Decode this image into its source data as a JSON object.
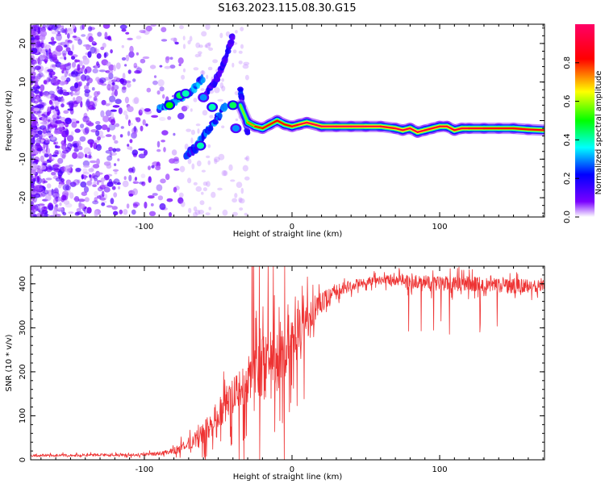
{
  "figure": {
    "title": "S163.2023.115.08.30.G15"
  },
  "chart_data": [
    {
      "type": "heatmap",
      "name": "spectrogram",
      "xlabel": "Height of straight line (km)",
      "ylabel": "Frequency (Hz)",
      "xlim": [
        -177,
        171
      ],
      "ylim": [
        -25,
        25
      ],
      "xticks": [
        -100,
        0,
        100
      ],
      "xtick_labels": [
        "-100",
        "0",
        "100"
      ],
      "yticks": [
        -20,
        -10,
        0,
        10,
        20
      ],
      "ytick_labels": [
        "-20",
        "-10",
        "0",
        "10",
        "20"
      ],
      "grid": false,
      "colorbar": {
        "label": "Normalized spectral amplitude",
        "range": [
          0,
          1
        ],
        "ticks": [
          0,
          0.2,
          0.4,
          0.6,
          0.8
        ],
        "tick_labels": [
          "0.0",
          "0.2",
          "0.4",
          "0.6",
          "0.8"
        ],
        "colormap": [
          "#ffffff",
          "#7a00ff",
          "#0000ff",
          "#00ffff",
          "#00ff00",
          "#ffff00",
          "#ff0000",
          "#ff0066"
        ]
      },
      "ridge": {
        "x": [
          -35,
          -30,
          -25,
          -20,
          -15,
          -10,
          -5,
          0,
          5,
          10,
          20,
          30,
          40,
          50,
          60,
          70,
          75,
          80,
          85,
          90,
          95,
          100,
          105,
          110,
          115,
          120,
          130,
          140,
          150,
          160,
          171
        ],
        "frequency": [
          4,
          -0.5,
          -1.5,
          -2,
          -1,
          0,
          -1,
          -1.5,
          -1,
          -0.5,
          -1.5,
          -1.5,
          -1.5,
          -1.5,
          -1.5,
          -2,
          -2.5,
          -2,
          -3,
          -2.5,
          -2,
          -1.5,
          -1.5,
          -2.5,
          -2,
          -2,
          -2,
          -2,
          -2,
          -2.3,
          -2.5
        ],
        "amplitude": [
          0.45,
          0.7,
          0.75,
          0.85,
          0.8,
          0.85,
          0.8,
          0.85,
          0.9,
          0.95,
          0.95,
          0.95,
          0.95,
          0.95,
          0.9,
          0.9,
          0.95,
          0.9,
          0.95,
          0.9,
          0.9,
          0.9,
          0.9,
          0.9,
          0.9,
          0.9,
          0.85,
          0.85,
          0.85,
          0.85,
          0.85
        ]
      },
      "streaks": [
        {
          "x": [
            -90,
            -80,
            -70,
            -65,
            -60
          ],
          "frequency": [
            3,
            5,
            7,
            9,
            11
          ],
          "amplitude": 0.35
        },
        {
          "x": [
            -60,
            -52,
            -45,
            -42,
            -40
          ],
          "frequency": [
            6,
            10,
            16,
            20,
            22
          ],
          "amplitude": 0.2
        },
        {
          "x": [
            -72,
            -65,
            -58,
            -50,
            -45
          ],
          "frequency": [
            -9,
            -7,
            -3,
            1,
            4
          ],
          "amplitude": 0.3
        },
        {
          "x": [
            -35,
            -33,
            -30
          ],
          "frequency": [
            8,
            3,
            -3
          ],
          "amplitude": 0.25
        }
      ],
      "blobs": [
        {
          "x": -83,
          "frequency": 4,
          "amplitude": 0.5
        },
        {
          "x": -76,
          "frequency": 6.5,
          "amplitude": 0.45
        },
        {
          "x": -72,
          "frequency": 7,
          "amplitude": 0.4
        },
        {
          "x": -54,
          "frequency": 3.5,
          "amplitude": 0.4
        },
        {
          "x": -40,
          "frequency": 4,
          "amplitude": 0.45
        },
        {
          "x": -60,
          "frequency": 6,
          "amplitude": 0.3
        },
        {
          "x": -62,
          "frequency": -6.5,
          "amplitude": 0.4
        },
        {
          "x": -38,
          "frequency": -2,
          "amplitude": 0.3
        }
      ]
    },
    {
      "type": "line",
      "name": "snr",
      "xlabel": "Height of straight line (km)",
      "ylabel": "SNR (10 * v/v)",
      "xlim": [
        -177,
        171
      ],
      "ylim": [
        0,
        440
      ],
      "xticks": [
        -100,
        0,
        100
      ],
      "xtick_labels": [
        "-100",
        "0",
        "100"
      ],
      "yticks": [
        0,
        100,
        200,
        300,
        400
      ],
      "ytick_labels": [
        "0",
        "100",
        "200",
        "300",
        "400"
      ],
      "grid": false,
      "color": "#ee3333",
      "envelope": {
        "x": [
          -177,
          -150,
          -120,
          -100,
          -90,
          -80,
          -70,
          -60,
          -50,
          -40,
          -30,
          -20,
          -10,
          0,
          10,
          20,
          30,
          40,
          50,
          60,
          80,
          100,
          120,
          140,
          160,
          171
        ],
        "y": [
          10,
          10,
          11,
          12,
          14,
          20,
          35,
          60,
          100,
          140,
          170,
          200,
          230,
          270,
          320,
          360,
          385,
          395,
          405,
          410,
          405,
          400,
          400,
          395,
          395,
          395
        ],
        "spread": [
          6,
          6,
          6,
          7,
          9,
          15,
          30,
          50,
          75,
          100,
          130,
          160,
          160,
          130,
          90,
          50,
          30,
          25,
          22,
          22,
          30,
          35,
          35,
          35,
          30,
          25
        ]
      }
    }
  ]
}
